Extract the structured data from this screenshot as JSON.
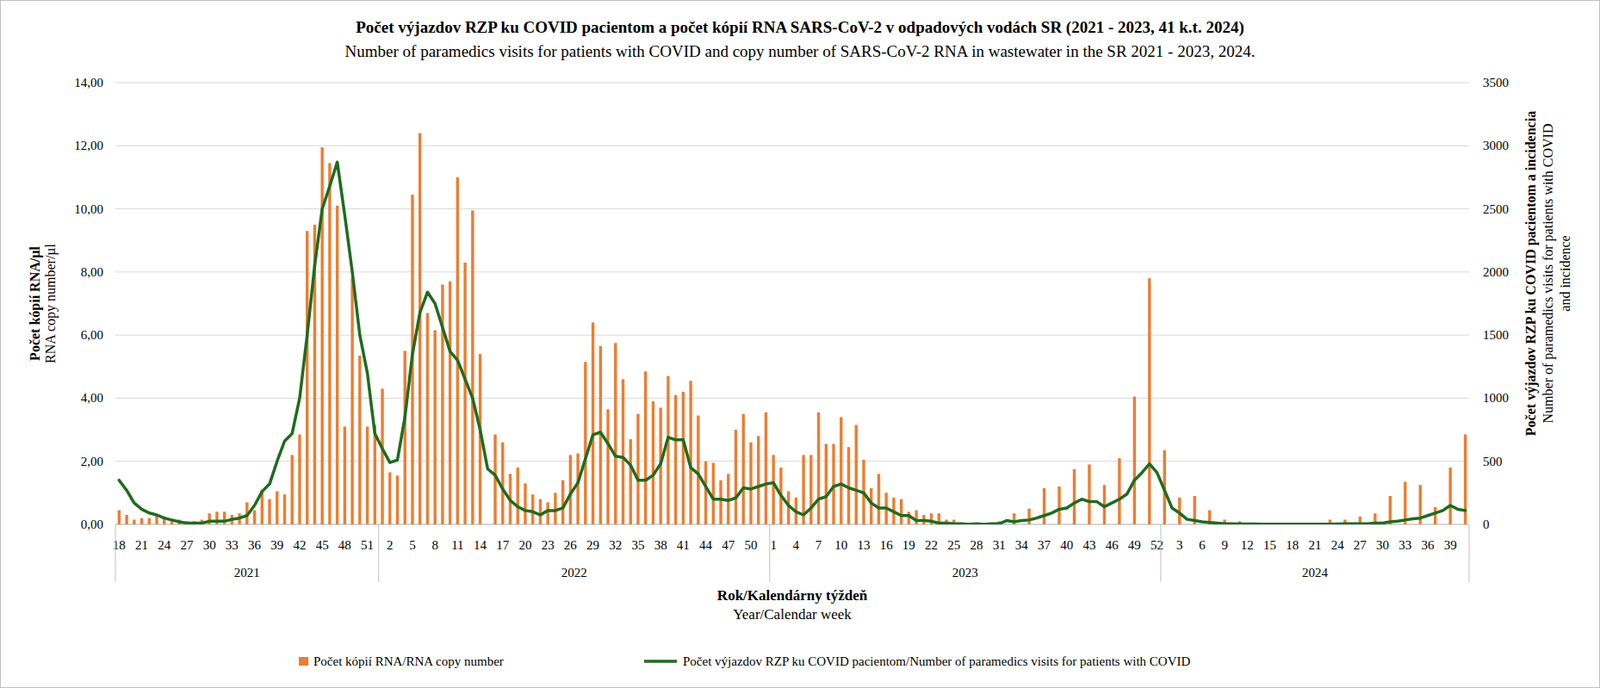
{
  "chart_data": {
    "type": "bar",
    "title": "Počet výjazdov RZP ku  COVID pacientom a počet kópií RNA  SARS-CoV-2 v odpadových vodách SR (2021 - 2023, 41 k.t. 2024)",
    "subtitle": "Number of paramedics visits for patients with COVID and copy number of SARS-CoV-2 RNA in wastewater in the SR 2021  - 2023, 2024.",
    "ylabel": [
      "Počet kópií RNA/µl",
      "RNA copy number/µl"
    ],
    "y2label": [
      "Počet výjazdov RZP ku COVID pacientom a incidencia",
      "Number of paramedics visits for patients with COVID",
      "and incidence"
    ],
    "xlabel": [
      "Rok/Kalendárny týždeň",
      "Year/Calendar week"
    ],
    "categories": [
      "18",
      null,
      null,
      "21",
      null,
      null,
      "24",
      null,
      null,
      "27",
      null,
      null,
      "30",
      null,
      null,
      "33",
      null,
      null,
      "36",
      null,
      null,
      "39",
      null,
      null,
      "42",
      null,
      null,
      "45",
      null,
      null,
      "48",
      null,
      null,
      "51",
      null,
      null,
      "2",
      null,
      null,
      "5",
      null,
      null,
      "8",
      null,
      null,
      "11",
      null,
      null,
      "14",
      null,
      null,
      "17",
      null,
      null,
      "20",
      null,
      null,
      "23",
      null,
      null,
      "26",
      null,
      null,
      "29",
      null,
      null,
      "32",
      null,
      null,
      "35",
      null,
      null,
      "38",
      null,
      null,
      "41",
      null,
      null,
      "44",
      null,
      null,
      "47",
      null,
      null,
      "50",
      null,
      null,
      "1",
      null,
      null,
      "4",
      null,
      null,
      "7",
      null,
      null,
      "10",
      null,
      null,
      "13",
      null,
      null,
      "16",
      null,
      null,
      "19",
      null,
      null,
      "22",
      null,
      null,
      "25",
      null,
      null,
      "28",
      null,
      null,
      "31",
      null,
      null,
      "34",
      null,
      null,
      "37",
      null,
      null,
      "40",
      null,
      null,
      "43",
      null,
      null,
      "46",
      null,
      null,
      "49",
      null,
      null,
      "52",
      null,
      null,
      "3",
      null,
      null,
      "6",
      null,
      null,
      "9",
      null,
      null,
      "12",
      null,
      null,
      "15",
      null,
      null,
      "18",
      null,
      null,
      "21",
      null,
      null,
      "24",
      null,
      null,
      "27",
      null,
      null,
      "30",
      null,
      null,
      "33",
      null,
      null,
      "36",
      null,
      null,
      "39",
      null,
      null
    ],
    "x_groups": [
      {
        "label": "2021",
        "count": 35
      },
      {
        "label": "2022",
        "count": 52
      },
      {
        "label": "2023",
        "count": 52
      },
      {
        "label": "2024",
        "count": 41
      }
    ],
    "ylim": [
      0,
      14
    ],
    "yticks": [
      {
        "value": 0,
        "label": "0,00"
      },
      {
        "value": 2,
        "label": "2,00"
      },
      {
        "value": 4,
        "label": "4,00"
      },
      {
        "value": 6,
        "label": "6,00"
      },
      {
        "value": 8,
        "label": "8,00"
      },
      {
        "value": 10,
        "label": "10,00"
      },
      {
        "value": 12,
        "label": "12,00"
      },
      {
        "value": 14,
        "label": "14,00"
      }
    ],
    "y2lim": [
      0,
      3500
    ],
    "y2ticks": [
      0,
      500,
      1000,
      1500,
      2000,
      2500,
      3000,
      3500
    ],
    "grid": true,
    "legend": "bottom",
    "series": [
      {
        "name": "Počet kópií RNA/RNA copy number",
        "type": "bar",
        "color": "#ed7d31",
        "values": [
          0.45,
          0.3,
          0.15,
          0.2,
          0.2,
          0.3,
          0.25,
          0.15,
          0.15,
          0.1,
          0.1,
          0.15,
          0.35,
          0.4,
          0.4,
          0.3,
          0.35,
          0.7,
          0.45,
          1.1,
          0.8,
          1.05,
          0.95,
          2.2,
          2.85,
          9.3,
          9.5,
          11.95,
          11.45,
          10.1,
          3.1,
          7.8,
          5.35,
          3.1,
          3.15,
          4.3,
          1.65,
          1.55,
          5.5,
          10.45,
          12.4,
          6.7,
          6.15,
          7.6,
          7.7,
          11.0,
          8.3,
          9.95,
          5.4,
          null,
          2.85,
          2.6,
          1.6,
          1.8,
          1.3,
          0.95,
          0.8,
          0.7,
          1.0,
          1.4,
          2.2,
          2.25,
          5.15,
          6.4,
          5.65,
          3.65,
          5.75,
          4.6,
          2.7,
          3.5,
          4.85,
          3.9,
          3.7,
          4.7,
          4.1,
          4.2,
          4.55,
          3.45,
          2.0,
          1.95,
          1.4,
          1.6,
          3.0,
          3.5,
          2.6,
          2.8,
          3.55,
          2.2,
          1.8,
          1.05,
          0.85,
          2.2,
          2.2,
          3.55,
          2.55,
          2.55,
          3.4,
          2.45,
          3.15,
          2.05,
          1.15,
          1.6,
          1.0,
          0.85,
          0.8,
          0.4,
          0.45,
          0.3,
          0.35,
          0.35,
          0.15,
          0.15,
          0.05,
          0.05,
          0.05,
          0.05,
          0.05,
          0.1,
          null,
          0.35,
          null,
          0.5,
          null,
          1.15,
          null,
          1.2,
          null,
          1.75,
          null,
          1.9,
          null,
          1.25,
          null,
          2.1,
          null,
          4.05,
          null,
          7.8,
          null,
          2.35,
          null,
          0.85,
          null,
          0.9,
          null,
          0.45,
          null,
          0.15,
          null,
          0.1,
          null,
          0.05,
          null,
          0.05,
          null,
          0.02,
          null,
          0.02,
          null,
          0.02,
          null,
          0.15,
          null,
          0.15,
          null,
          0.25,
          null,
          0.35,
          null,
          0.9,
          null,
          1.35,
          null,
          1.25,
          null,
          0.55,
          null,
          1.8,
          null,
          2.85
        ]
      },
      {
        "name": "Počet výjazdov RZP ku COVID pacientom/Number of paramedics visits for patients with COVID",
        "type": "line",
        "axis": "y2",
        "color": "#1f6b1f",
        "values": [
          350,
          270,
          170,
          120,
          90,
          75,
          50,
          35,
          20,
          10,
          10,
          10,
          25,
          25,
          25,
          40,
          50,
          70,
          150,
          260,
          320,
          500,
          660,
          720,
          1000,
          1500,
          2050,
          2500,
          2680,
          2870,
          2450,
          2000,
          1500,
          1200,
          720,
          600,
          490,
          510,
          850,
          1350,
          1680,
          1840,
          1750,
          1560,
          1370,
          1300,
          1150,
          1000,
          750,
          440,
          390,
          280,
          190,
          140,
          110,
          100,
          75,
          110,
          110,
          130,
          240,
          330,
          520,
          710,
          730,
          640,
          540,
          530,
          470,
          350,
          350,
          390,
          480,
          690,
          670,
          670,
          450,
          400,
          300,
          200,
          200,
          190,
          210,
          290,
          280,
          300,
          320,
          330,
          230,
          150,
          100,
          75,
          130,
          200,
          220,
          300,
          320,
          290,
          270,
          250,
          170,
          130,
          130,
          100,
          70,
          70,
          30,
          30,
          25,
          10,
          10,
          5,
          5,
          0,
          5,
          0,
          5,
          5,
          30,
          20,
          30,
          35,
          50,
          70,
          90,
          120,
          130,
          170,
          200,
          180,
          180,
          140,
          170,
          200,
          240,
          350,
          410,
          480,
          410,
          270,
          130,
          90,
          40,
          30,
          20,
          15,
          10,
          5,
          5,
          3,
          3,
          3,
          2,
          2,
          2,
          2,
          2,
          2,
          2,
          2,
          2,
          2,
          3,
          5,
          5,
          5,
          5,
          10,
          10,
          20,
          25,
          35,
          45,
          50,
          70,
          90,
          110,
          150,
          120,
          110
        ]
      }
    ]
  }
}
